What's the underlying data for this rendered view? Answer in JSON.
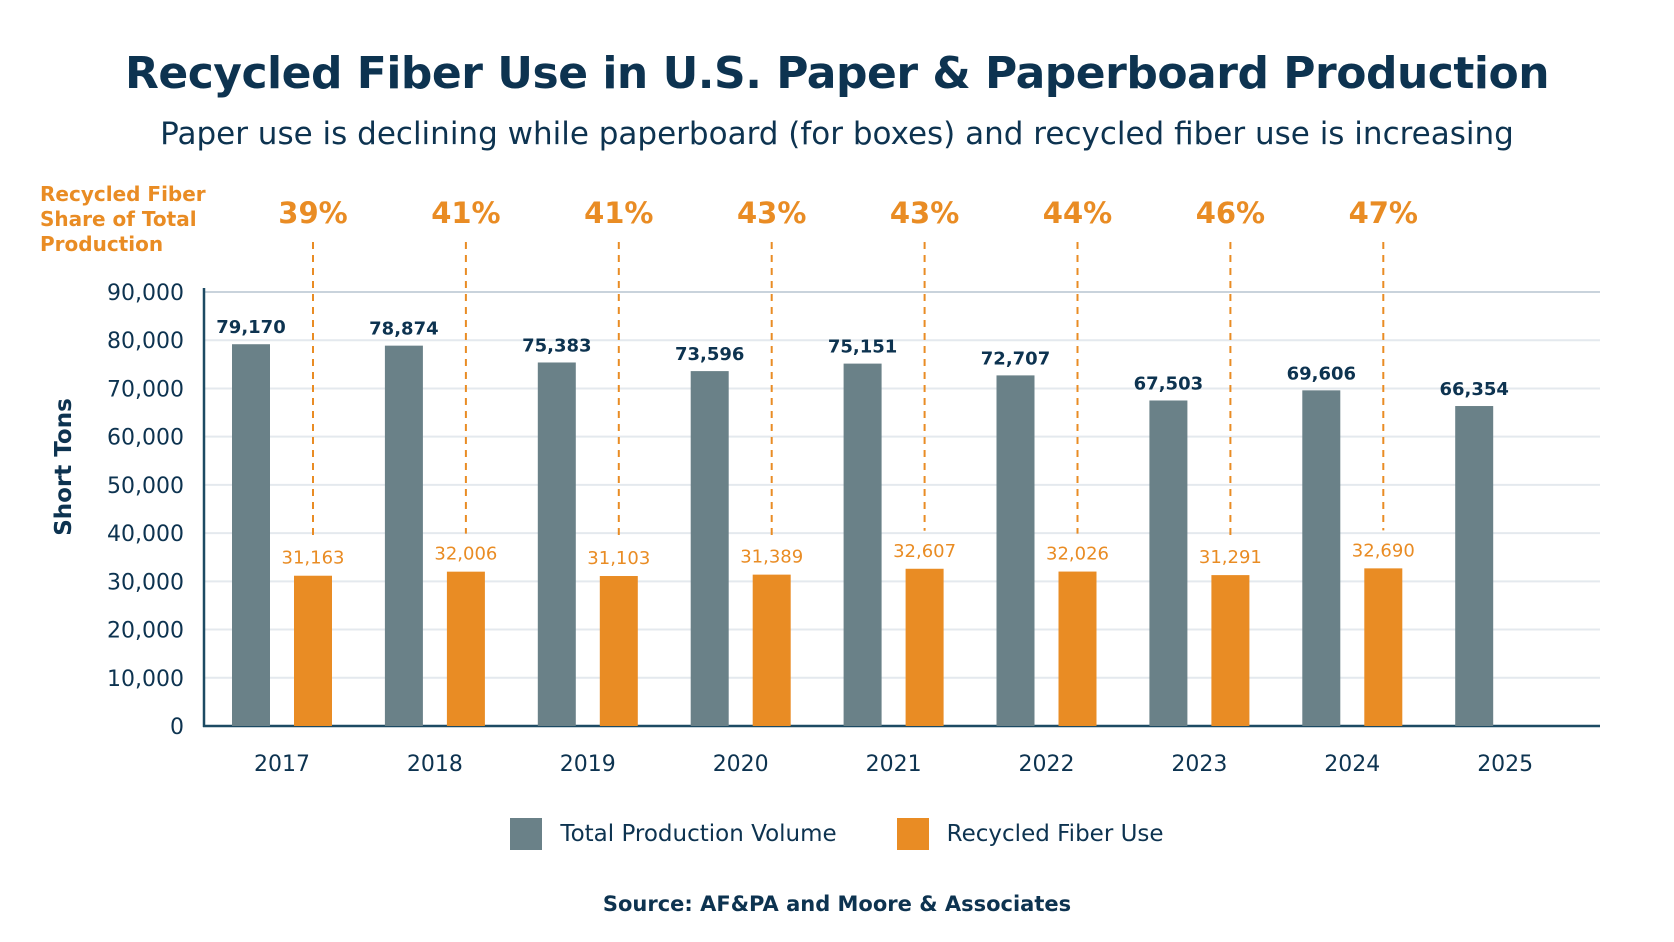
{
  "colors": {
    "total": "#6a8188",
    "recycled": "#e98c24",
    "text": "#0d3350",
    "grid": "#e4e9ee",
    "axis": "#1d4a63"
  },
  "header": {
    "title": "Recycled Fiber Use in U.S. Paper & Paperboard Production",
    "subtitle": "Paper use is declining while paperboard (for boxes) and recycled fiber use is increasing"
  },
  "share_label": "Recycled Fiber Share of Total Production",
  "source": "Source: AF&PA and Moore & Associates",
  "chart_data": {
    "type": "bar",
    "title": "Recycled Fiber Use in U.S. Paper & Paperboard Production",
    "subtitle": "Paper use is declining while paperboard (for boxes) and recycled fiber use is increasing",
    "xlabel": "",
    "ylabel": "Short Tons",
    "ylim": [
      0,
      90000
    ],
    "yticks": [
      0,
      10000,
      20000,
      30000,
      40000,
      50000,
      60000,
      70000,
      80000,
      90000
    ],
    "ytick_labels": [
      "0",
      "10,000",
      "20,000",
      "30,000",
      "40,000",
      "50,000",
      "60,000",
      "70,000",
      "80,000",
      "90,000"
    ],
    "grid": true,
    "legend_position": "bottom",
    "categories": [
      "2017",
      "2018",
      "2019",
      "2020",
      "2021",
      "2022",
      "2023",
      "2024",
      "2025"
    ],
    "series": [
      {
        "name": "Total Production Volume",
        "values": [
          79170,
          78874,
          75383,
          73596,
          75151,
          72707,
          67503,
          69606,
          66354
        ],
        "labels": [
          "79,170",
          "78,874",
          "75,383",
          "73,596",
          "75,151",
          "72,707",
          "67,503",
          "69,606",
          "66,354"
        ]
      },
      {
        "name": "Recycled Fiber Use",
        "values": [
          31163,
          32006,
          31103,
          31389,
          32607,
          32026,
          31291,
          32690,
          null
        ],
        "labels": [
          "31,163",
          "32,006",
          "31,103",
          "31,389",
          "32,607",
          "32,026",
          "31,291",
          "32,690",
          null
        ]
      }
    ],
    "annotations": {
      "name": "Recycled Fiber Share of Total Production",
      "values": [
        "39%",
        "41%",
        "41%",
        "43%",
        "43%",
        "44%",
        "46%",
        "47%",
        null
      ]
    }
  }
}
